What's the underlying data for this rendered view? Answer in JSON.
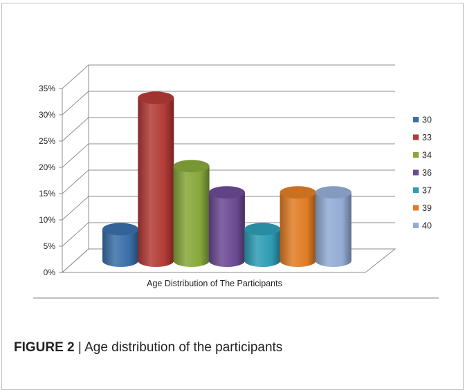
{
  "chart_data": {
    "type": "bar",
    "style": "3d-cylinder",
    "xlabel": "Age Distribution of The Participants",
    "ylim": [
      0,
      35
    ],
    "yticks": [
      "0%",
      "5%",
      "10%",
      "15%",
      "20%",
      "25%",
      "30%",
      "35%"
    ],
    "grid": true,
    "legend_position": "right",
    "series": [
      {
        "name": "30",
        "value": 6,
        "color": "#3a6ea8"
      },
      {
        "name": "33",
        "value": 31,
        "color": "#b33a36"
      },
      {
        "name": "34",
        "value": 18,
        "color": "#86a73a"
      },
      {
        "name": "36",
        "value": 13,
        "color": "#6b4a93"
      },
      {
        "name": "37",
        "value": 6,
        "color": "#2e9cb4"
      },
      {
        "name": "39",
        "value": 13,
        "color": "#e07c25"
      },
      {
        "name": "40",
        "value": 13,
        "color": "#93acd4"
      }
    ]
  },
  "caption": {
    "label": "FIGURE 2",
    "separator": " | ",
    "text": "Age distribution of the participants"
  }
}
